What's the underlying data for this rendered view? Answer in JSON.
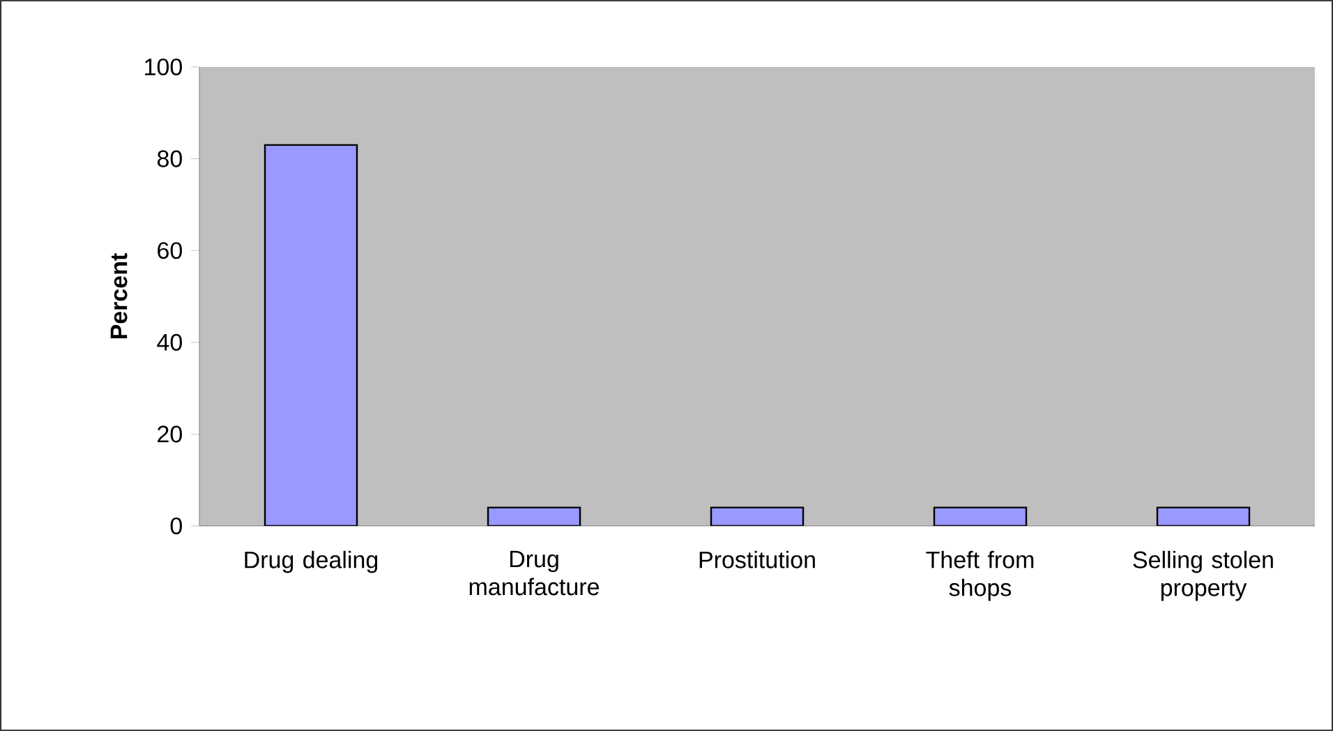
{
  "chart_data": {
    "type": "bar",
    "ylabel": "**Percent**",
    "categories": [
      "Drug dealing",
      "Drug manufacture",
      "Prostitution",
      "Theft from shops",
      "Selling stolen property"
    ],
    "values": [
      83,
      4,
      4,
      4,
      4
    ],
    "color": "#9999ff",
    "ylim": [
      0,
      100
    ],
    "yticks": [
      0,
      20,
      40,
      60,
      80,
      100
    ],
    "grid": false
  }
}
